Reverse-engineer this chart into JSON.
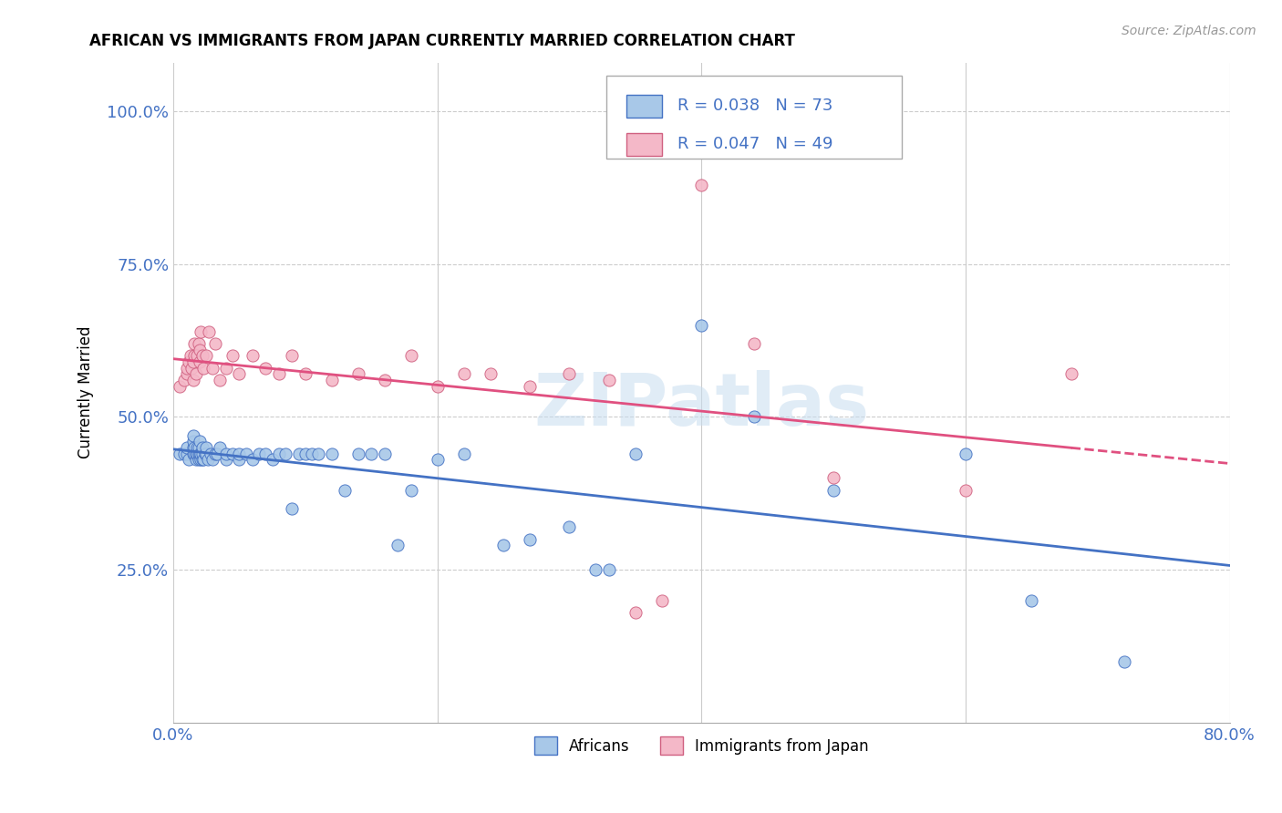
{
  "title": "AFRICAN VS IMMIGRANTS FROM JAPAN CURRENTLY MARRIED CORRELATION CHART",
  "source": "Source: ZipAtlas.com",
  "ylabel": "Currently Married",
  "ytick_labels": [
    "25.0%",
    "50.0%",
    "75.0%",
    "100.0%"
  ],
  "ytick_values": [
    0.25,
    0.5,
    0.75,
    1.0
  ],
  "xlim": [
    0.0,
    0.8
  ],
  "ylim": [
    0.0,
    1.08
  ],
  "legend_label_african": "Africans",
  "legend_label_japan": "Immigrants from Japan",
  "color_african": "#a8c8e8",
  "color_japan": "#f4b8c8",
  "color_line_african": "#4472c4",
  "color_line_japan": "#e05080",
  "watermark": "ZIPatlas",
  "africans_x": [
    0.005,
    0.008,
    0.01,
    0.01,
    0.012,
    0.015,
    0.015,
    0.015,
    0.015,
    0.016,
    0.016,
    0.017,
    0.017,
    0.018,
    0.018,
    0.019,
    0.019,
    0.019,
    0.02,
    0.02,
    0.021,
    0.021,
    0.022,
    0.022,
    0.022,
    0.023,
    0.024,
    0.025,
    0.025,
    0.026,
    0.028,
    0.03,
    0.032,
    0.033,
    0.035,
    0.04,
    0.04,
    0.045,
    0.05,
    0.05,
    0.055,
    0.06,
    0.065,
    0.07,
    0.075,
    0.08,
    0.085,
    0.09,
    0.095,
    0.1,
    0.105,
    0.11,
    0.12,
    0.13,
    0.14,
    0.15,
    0.16,
    0.17,
    0.18,
    0.2,
    0.22,
    0.25,
    0.27,
    0.3,
    0.32,
    0.33,
    0.35,
    0.4,
    0.44,
    0.5,
    0.6,
    0.65,
    0.72
  ],
  "africans_y": [
    0.44,
    0.44,
    0.44,
    0.45,
    0.43,
    0.44,
    0.45,
    0.46,
    0.47,
    0.44,
    0.45,
    0.43,
    0.44,
    0.44,
    0.45,
    0.43,
    0.44,
    0.45,
    0.44,
    0.46,
    0.43,
    0.44,
    0.43,
    0.44,
    0.45,
    0.43,
    0.44,
    0.44,
    0.45,
    0.43,
    0.44,
    0.43,
    0.44,
    0.44,
    0.45,
    0.43,
    0.44,
    0.44,
    0.43,
    0.44,
    0.44,
    0.43,
    0.44,
    0.44,
    0.43,
    0.44,
    0.44,
    0.35,
    0.44,
    0.44,
    0.44,
    0.44,
    0.44,
    0.38,
    0.44,
    0.44,
    0.44,
    0.29,
    0.38,
    0.43,
    0.44,
    0.29,
    0.3,
    0.32,
    0.25,
    0.25,
    0.44,
    0.65,
    0.5,
    0.38,
    0.44,
    0.2,
    0.1
  ],
  "japan_x": [
    0.005,
    0.008,
    0.01,
    0.01,
    0.012,
    0.013,
    0.014,
    0.015,
    0.015,
    0.016,
    0.016,
    0.017,
    0.018,
    0.019,
    0.02,
    0.02,
    0.021,
    0.022,
    0.023,
    0.025,
    0.027,
    0.03,
    0.032,
    0.035,
    0.04,
    0.045,
    0.05,
    0.06,
    0.07,
    0.08,
    0.09,
    0.1,
    0.12,
    0.14,
    0.16,
    0.18,
    0.2,
    0.22,
    0.24,
    0.27,
    0.3,
    0.33,
    0.35,
    0.37,
    0.4,
    0.44,
    0.5,
    0.6,
    0.68
  ],
  "japan_y": [
    0.55,
    0.56,
    0.57,
    0.58,
    0.59,
    0.6,
    0.58,
    0.56,
    0.59,
    0.6,
    0.62,
    0.57,
    0.6,
    0.62,
    0.59,
    0.61,
    0.64,
    0.6,
    0.58,
    0.6,
    0.64,
    0.58,
    0.62,
    0.56,
    0.58,
    0.6,
    0.57,
    0.6,
    0.58,
    0.57,
    0.6,
    0.57,
    0.56,
    0.57,
    0.56,
    0.6,
    0.55,
    0.57,
    0.57,
    0.55,
    0.57,
    0.56,
    0.18,
    0.2,
    0.88,
    0.62,
    0.4,
    0.38,
    0.57
  ]
}
